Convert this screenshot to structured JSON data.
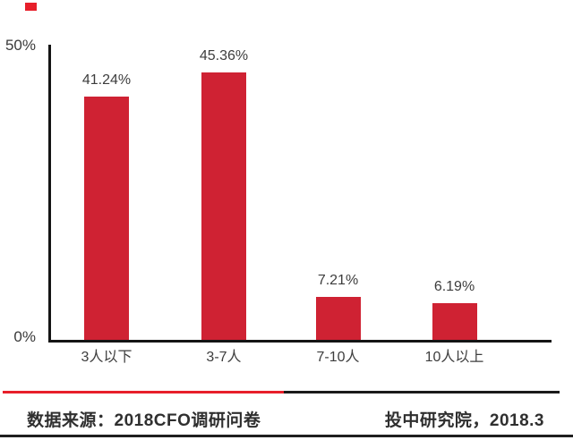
{
  "chart_data": {
    "type": "bar",
    "title": "",
    "categories": [
      "3人以下",
      "3-7人",
      "7-10人",
      "10人以上"
    ],
    "values": [
      41.24,
      45.36,
      7.21,
      6.19
    ],
    "value_labels": [
      "41.24%",
      "45.36%",
      "7.21%",
      "6.19%"
    ],
    "xlabel": "",
    "ylabel": "",
    "ylim": [
      0,
      50
    ],
    "y_ticks": [
      "0%",
      "50%"
    ],
    "grid": false,
    "legend": false,
    "bar_color": "#cf2233",
    "axis_color": "#141414",
    "label_color": "#3d3d3d"
  },
  "y_axis": {
    "top_tick_label": "50%",
    "bottom_tick_label": "0%"
  },
  "footer": {
    "source_label": "数据来源：2018CFO调研问卷",
    "publisher_label": "投中研究院，2018.3"
  },
  "decorations": {
    "corner_square_color": "#e71f2a",
    "divider_red_color": "#e71f2a",
    "divider_black_color": "#1a1a1a",
    "bottom_border_color": "#1f1f1f"
  }
}
